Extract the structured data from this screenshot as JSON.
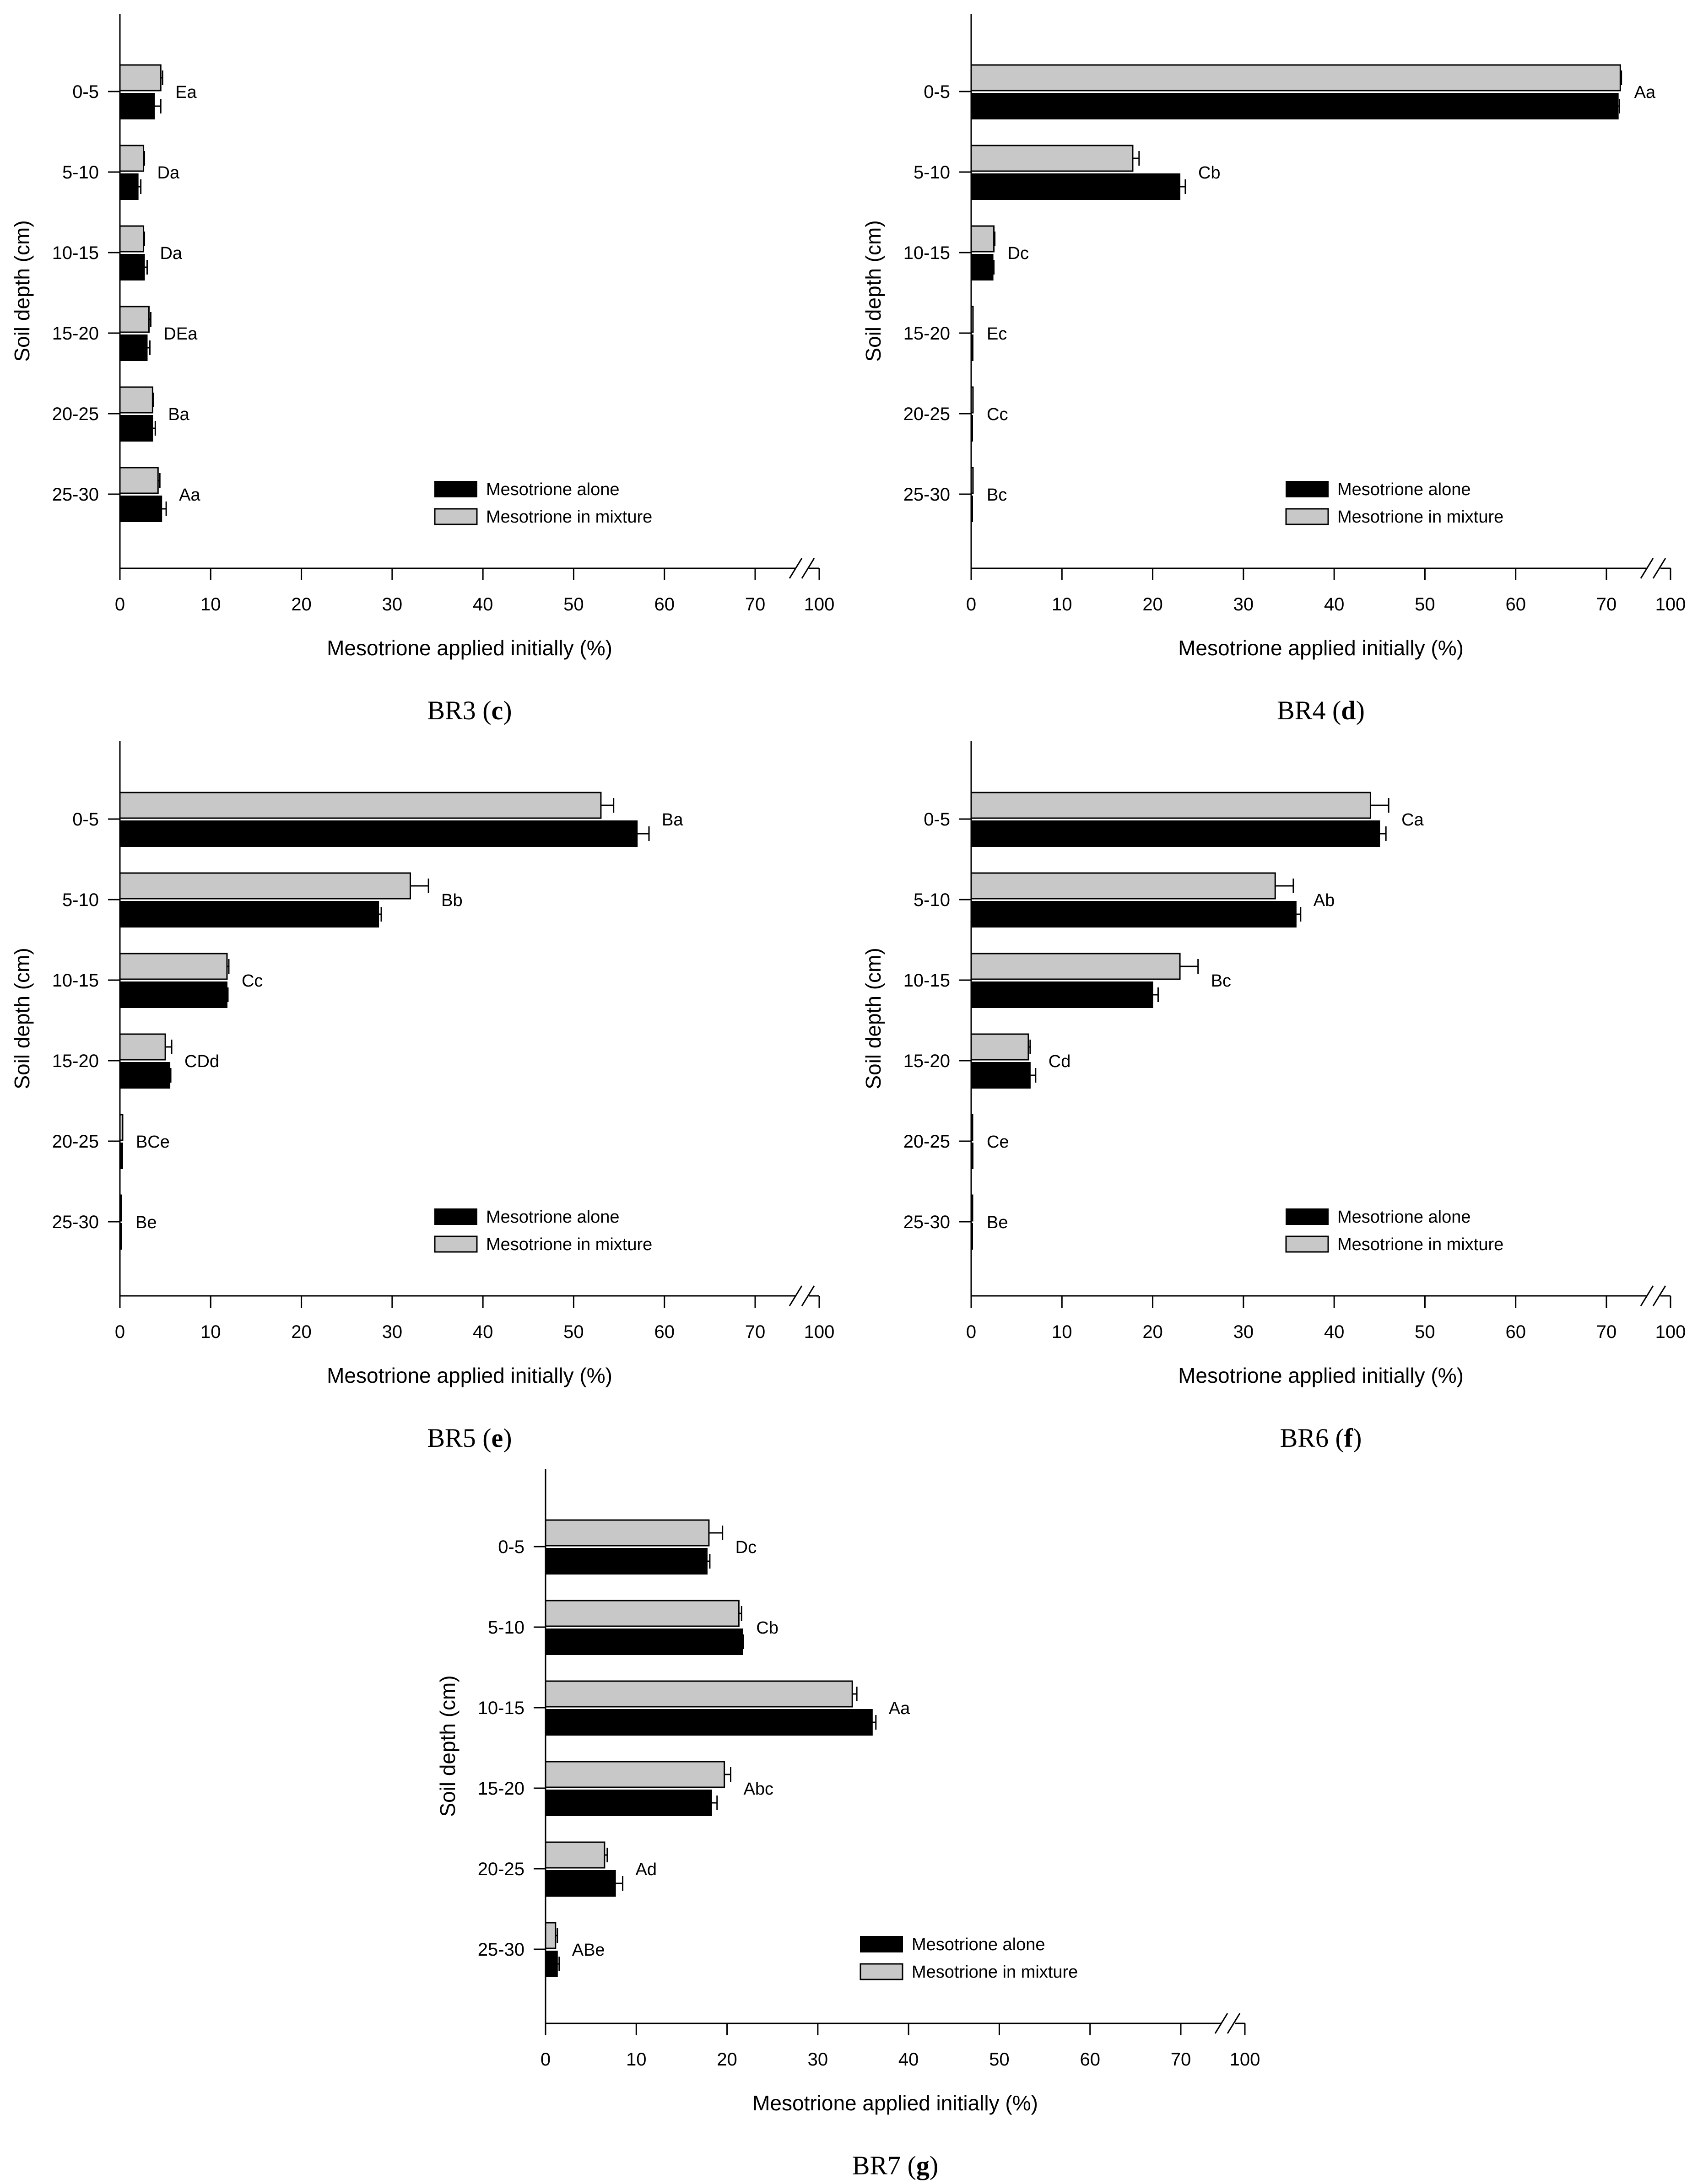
{
  "legend": {
    "alone": "Mesotrione alone",
    "mixture": "Mesotrione in mixture"
  },
  "colors": {
    "alone": "#000000",
    "mixture": "#c8c8c8"
  },
  "chart_data": [
    {
      "type": "bar",
      "orientation": "horizontal",
      "panel": "BR3",
      "caption_prefix": "BR3 (",
      "caption_letter": "c",
      "caption_suffix": ")",
      "xlabel": "Mesotrione applied initially (%)",
      "ylabel": "Soil depth (cm)",
      "xlim": [
        0,
        100
      ],
      "xticks": [
        "0",
        "10",
        "20",
        "30",
        "40",
        "50",
        "60",
        "70",
        "100"
      ],
      "categories": [
        "0-5",
        "5-10",
        "10-15",
        "15-20",
        "20-25",
        "25-30"
      ],
      "series": [
        {
          "name": "Mesotrione alone",
          "values": [
            3.8,
            2.0,
            2.7,
            3.0,
            3.6,
            4.6
          ],
          "errors": [
            0.7,
            0.3,
            0.3,
            0.3,
            0.3,
            0.5
          ]
        },
        {
          "name": "Mesotrione in mixture",
          "values": [
            4.5,
            2.6,
            2.6,
            3.2,
            3.6,
            4.2
          ],
          "errors": [
            0.2,
            0.1,
            0.1,
            0.2,
            0.1,
            0.2
          ]
        }
      ],
      "labels": [
        "Ea",
        "Da",
        "Da",
        "DEa",
        "Ba",
        "Aa"
      ]
    },
    {
      "type": "bar",
      "orientation": "horizontal",
      "panel": "BR4",
      "caption_prefix": "BR4 (",
      "caption_letter": "d",
      "caption_suffix": ")",
      "xlabel": "Mesotrione applied initially (%)",
      "ylabel": "Soil depth (cm)",
      "xlim": [
        0,
        100
      ],
      "xticks": [
        "0",
        "10",
        "20",
        "30",
        "40",
        "50",
        "60",
        "70",
        "100"
      ],
      "categories": [
        "0-5",
        "5-10",
        "10-15",
        "15-20",
        "20-25",
        "25-30"
      ],
      "series": [
        {
          "name": "Mesotrione alone",
          "values": [
            75.5,
            23.0,
            2.4,
            0.2,
            0.1,
            0.1
          ],
          "errors": [
            0.6,
            0.6,
            0.1,
            0.05,
            0.05,
            0.05
          ]
        },
        {
          "name": "Mesotrione in mixture",
          "values": [
            76.5,
            17.8,
            2.5,
            0.2,
            0.2,
            0.2
          ],
          "errors": [
            0.5,
            0.7,
            0.1,
            0.05,
            0.05,
            0.05
          ]
        }
      ],
      "labels": [
        "Aa",
        "Cb",
        "Dc",
        "Ec",
        "Cc",
        "Bc"
      ]
    },
    {
      "type": "bar",
      "orientation": "horizontal",
      "panel": "BR5",
      "caption_prefix": "BR5 (",
      "caption_letter": "e",
      "caption_suffix": ")",
      "xlabel": "Mesotrione applied initially (%)",
      "ylabel": "Soil depth (cm)",
      "xlim": [
        0,
        100
      ],
      "xticks": [
        "0",
        "10",
        "20",
        "30",
        "40",
        "50",
        "60",
        "70",
        "100"
      ],
      "categories": [
        "0-5",
        "5-10",
        "10-15",
        "15-20",
        "20-25",
        "25-30"
      ],
      "series": [
        {
          "name": "Mesotrione alone",
          "values": [
            57.0,
            28.5,
            11.8,
            5.5,
            0.3,
            0.1
          ],
          "errors": [
            1.3,
            0.3,
            0.1,
            0.1,
            0.05,
            0.05
          ]
        },
        {
          "name": "Mesotrione in mixture",
          "values": [
            53.0,
            32.0,
            11.8,
            5.0,
            0.3,
            0.1
          ],
          "errors": [
            1.4,
            2.0,
            0.2,
            0.7,
            0.05,
            0.05
          ]
        }
      ],
      "labels": [
        "Ba",
        "Bb",
        "Cc",
        "CDd",
        "BCe",
        "Be"
      ]
    },
    {
      "type": "bar",
      "orientation": "horizontal",
      "panel": "BR6",
      "caption_prefix": "BR6 (",
      "caption_letter": "f",
      "caption_suffix": ")",
      "xlabel": "Mesotrione applied initially (%)",
      "ylabel": "Soil depth (cm)",
      "xlim": [
        0,
        100
      ],
      "xticks": [
        "0",
        "10",
        "20",
        "30",
        "40",
        "50",
        "60",
        "70",
        "100"
      ],
      "categories": [
        "0-5",
        "5-10",
        "10-15",
        "15-20",
        "20-25",
        "25-30"
      ],
      "series": [
        {
          "name": "Mesotrione alone",
          "values": [
            45.0,
            35.8,
            20.0,
            6.5,
            0.2,
            0.1
          ],
          "errors": [
            0.7,
            0.5,
            0.6,
            0.6,
            0.05,
            0.05
          ]
        },
        {
          "name": "Mesotrione in mixture",
          "values": [
            44.0,
            33.5,
            23.0,
            6.3,
            0.1,
            0.1
          ],
          "errors": [
            2.0,
            2.0,
            2.0,
            0.2,
            0.05,
            0.05
          ]
        }
      ],
      "labels": [
        "Ca",
        "Ab",
        "Bc",
        "Cd",
        "Ce",
        "Be"
      ]
    },
    {
      "type": "bar",
      "orientation": "horizontal",
      "panel": "BR7",
      "caption_prefix": "BR7 (",
      "caption_letter": "g",
      "caption_suffix": ")",
      "xlabel": "Mesotrione applied initially (%)",
      "ylabel": "Soil depth (cm)",
      "xlim": [
        0,
        100
      ],
      "xticks": [
        "0",
        "10",
        "20",
        "30",
        "40",
        "50",
        "60",
        "70",
        "100"
      ],
      "categories": [
        "0-5",
        "5-10",
        "10-15",
        "15-20",
        "20-25",
        "25-30"
      ],
      "series": [
        {
          "name": "Mesotrione alone",
          "values": [
            17.8,
            21.7,
            36.0,
            18.3,
            7.7,
            1.3
          ],
          "errors": [
            0.3,
            0.1,
            0.4,
            0.6,
            0.8,
            0.2
          ]
        },
        {
          "name": "Mesotrione in mixture",
          "values": [
            18.0,
            21.3,
            33.8,
            19.7,
            6.5,
            1.1
          ],
          "errors": [
            1.5,
            0.3,
            0.5,
            0.7,
            0.3,
            0.2
          ]
        }
      ],
      "labels": [
        "Dc",
        "Cb",
        "Aa",
        "Abc",
        "Ad",
        "ABe"
      ]
    }
  ]
}
